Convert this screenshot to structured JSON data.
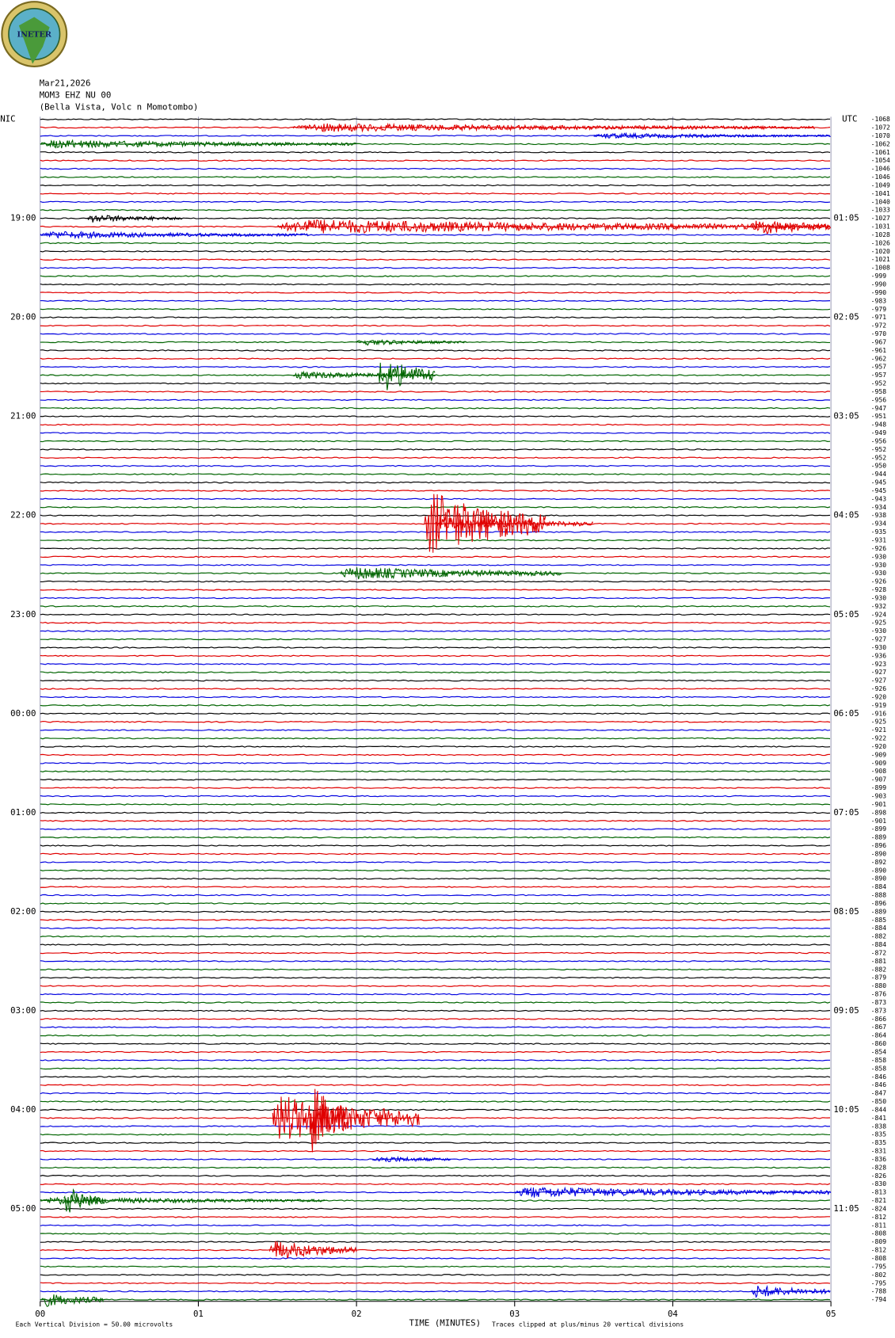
{
  "chart_data": {
    "type": "helicorder",
    "logo_text": "INETER",
    "date": "Mar21,2026",
    "station": "MOM3 EHZ NU 00",
    "location": "(Bella Vista, Volc n Momotombo)",
    "left_label": "NIC",
    "right_label": "UTC",
    "x_label": "TIME (MINUTES)",
    "footer_left": "Each Vertical Division =   50.00 microvolts",
    "footer_right": "Traces clipped at plus/minus 20 vertical divisions",
    "xlim": [
      0,
      5
    ],
    "xticks": [
      {
        "value": 0,
        "label": "00"
      },
      {
        "value": 1,
        "label": "01"
      },
      {
        "value": 2,
        "label": "02"
      },
      {
        "value": 3,
        "label": "03"
      },
      {
        "value": 4,
        "label": "04"
      },
      {
        "value": 5,
        "label": "05"
      }
    ],
    "trace_colors": [
      "#000000",
      "#e00000",
      "#0000e0",
      "#006400"
    ],
    "offsets": [
      -1068,
      -1072,
      -1070,
      -1062,
      -1061,
      -1054,
      -1046,
      -1046,
      -1049,
      -1041,
      -1040,
      -1033,
      -1027,
      -1031,
      -1028,
      -1026,
      -1020,
      -1021,
      -1008,
      -999,
      -990,
      -990,
      -983,
      -979,
      -971,
      -972,
      -970,
      -967,
      -961,
      -962,
      -957,
      -957,
      -952,
      -958,
      -956,
      -947,
      -951,
      -948,
      -949,
      -956,
      -952,
      -952,
      -950,
      -944,
      -945,
      -945,
      -943,
      -934,
      -938,
      -934,
      -935,
      -931,
      -926,
      -930,
      -930,
      -930,
      -926,
      -928,
      -930,
      -932,
      -924,
      -925,
      -930,
      -927,
      -930,
      -936,
      -923,
      -927,
      -927,
      -926,
      -920,
      -919,
      -916,
      -925,
      -921,
      -922,
      -920,
      -909,
      -909,
      -908,
      -907,
      -899,
      -903,
      -901,
      -898,
      -901,
      -899,
      -889,
      -896,
      -890,
      -892,
      -890,
      -890,
      -884,
      -888,
      -896,
      -889,
      -885,
      -884,
      -882,
      -884,
      -872,
      -881,
      -882,
      -879,
      -880,
      -876,
      -873,
      -873,
      -866,
      -867,
      -864,
      -860,
      -854,
      -858,
      -858,
      -846,
      -846,
      -847,
      -850,
      -844,
      -841,
      -838,
      -835,
      -835,
      -831,
      -836,
      -828,
      -826,
      -830,
      -813,
      -821,
      -824,
      -812,
      -811,
      -808,
      -809,
      -812,
      -808,
      -795,
      -802,
      -795,
      -788,
      -794
    ],
    "hour_labels": [
      {
        "row": 12,
        "nic": "19:00",
        "utc": "01:05"
      },
      {
        "row": 24,
        "nic": "20:00",
        "utc": "02:05"
      },
      {
        "row": 36,
        "nic": "21:00",
        "utc": "03:05"
      },
      {
        "row": 48,
        "nic": "22:00",
        "utc": "04:05"
      },
      {
        "row": 60,
        "nic": "23:00",
        "utc": "05:05"
      },
      {
        "row": 72,
        "nic": "00:00",
        "utc": "06:05"
      },
      {
        "row": 84,
        "nic": "01:00",
        "utc": "07:05"
      },
      {
        "row": 96,
        "nic": "02:00",
        "utc": "08:05"
      },
      {
        "row": 108,
        "nic": "03:00",
        "utc": "09:05"
      },
      {
        "row": 120,
        "nic": "04:00",
        "utc": "10:05"
      },
      {
        "row": 132,
        "nic": "05:00",
        "utc": "11:05"
      }
    ],
    "events": [
      {
        "row": 1,
        "start": 1.6,
        "end": 4.9,
        "amp": 0.45
      },
      {
        "row": 2,
        "start": 3.5,
        "end": 5,
        "amp": 0.3
      },
      {
        "row": 3,
        "start": 0,
        "end": 2,
        "amp": 0.45
      },
      {
        "row": 12,
        "start": 0.3,
        "end": 0.9,
        "amp": 0.45
      },
      {
        "row": 13,
        "start": 1.5,
        "end": 5,
        "amp": 0.8
      },
      {
        "row": 13,
        "start": 4.5,
        "end": 5,
        "amp": 1.0
      },
      {
        "row": 14,
        "start": 0,
        "end": 1.7,
        "amp": 0.4
      },
      {
        "row": 27,
        "start": 2.0,
        "end": 2.7,
        "amp": 0.35
      },
      {
        "row": 31,
        "start": 2.14,
        "end": 2.5,
        "amp": 2.0
      },
      {
        "row": 31,
        "start": 1.6,
        "end": 2.5,
        "amp": 0.4
      },
      {
        "row": 49,
        "start": 2.43,
        "end": 3.2,
        "amp": 3.5
      },
      {
        "row": 49,
        "start": 2.5,
        "end": 3.5,
        "amp": 0.7
      },
      {
        "row": 55,
        "start": 1.9,
        "end": 3.3,
        "amp": 0.7
      },
      {
        "row": 121,
        "start": 1.47,
        "end": 2.4,
        "amp": 2.6
      },
      {
        "row": 121,
        "start": 1.7,
        "end": 1.95,
        "amp": 4.0
      },
      {
        "row": 126,
        "start": 2.1,
        "end": 2.6,
        "amp": 0.4
      },
      {
        "row": 130,
        "start": 3.0,
        "end": 5,
        "amp": 0.6
      },
      {
        "row": 131,
        "start": 0.15,
        "end": 0.4,
        "amp": 1.6
      },
      {
        "row": 131,
        "start": 0,
        "end": 1.8,
        "amp": 0.4
      },
      {
        "row": 137,
        "start": 1.45,
        "end": 2.0,
        "amp": 1.1
      },
      {
        "row": 142,
        "start": 4.5,
        "end": 5,
        "amp": 0.7
      },
      {
        "row": 143,
        "start": 0,
        "end": 0.4,
        "amp": 0.8
      }
    ]
  }
}
